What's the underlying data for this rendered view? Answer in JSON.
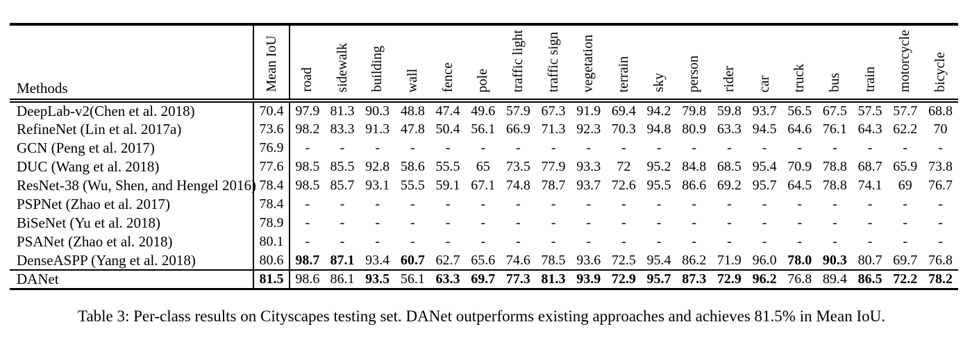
{
  "table": {
    "methods_header": "Methods",
    "mean_iou_header": "Mean IoU",
    "class_headers": [
      "road",
      "sidewalk",
      "building",
      "wall",
      "fence",
      "pole",
      "traffic light",
      "traffic sign",
      "vegetation",
      "terrain",
      "sky",
      "person",
      "rider",
      "car",
      "truck",
      "bus",
      "train",
      "motorcycle",
      "bicycle"
    ],
    "rows": [
      {
        "method": "DeepLab-v2(Chen et al. 2018)",
        "mean": "70.4",
        "mean_bold": false,
        "separator_above": false,
        "values": [
          "97.9",
          "81.3",
          "90.3",
          "48.8",
          "47.4",
          "49.6",
          "57.9",
          "67.3",
          "91.9",
          "69.4",
          "94.2",
          "79.8",
          "59.8",
          "93.7",
          "56.5",
          "67.5",
          "57.5",
          "57.7",
          "68.8"
        ],
        "bold_indices": []
      },
      {
        "method": "RefineNet (Lin et al. 2017a)",
        "mean": "73.6",
        "mean_bold": false,
        "separator_above": false,
        "values": [
          "98.2",
          "83.3",
          "91.3",
          "47.8",
          "50.4",
          "56.1",
          "66.9",
          "71.3",
          "92.3",
          "70.3",
          "94.8",
          "80.9",
          "63.3",
          "94.5",
          "64.6",
          "76.1",
          "64.3",
          "62.2",
          "70"
        ],
        "bold_indices": []
      },
      {
        "method": "GCN (Peng et al. 2017)",
        "mean": "76.9",
        "mean_bold": false,
        "separator_above": false,
        "values": [
          "-",
          "-",
          "-",
          "-",
          "-",
          "-",
          "-",
          "-",
          "-",
          "-",
          "-",
          "-",
          "-",
          "-",
          "-",
          "-",
          "-",
          "-",
          "-"
        ],
        "bold_indices": []
      },
      {
        "method": "DUC (Wang et al. 2018)",
        "mean": "77.6",
        "mean_bold": false,
        "separator_above": false,
        "values": [
          "98.5",
          "85.5",
          "92.8",
          "58.6",
          "55.5",
          "65",
          "73.5",
          "77.9",
          "93.3",
          "72",
          "95.2",
          "84.8",
          "68.5",
          "95.4",
          "70.9",
          "78.8",
          "68.7",
          "65.9",
          "73.8"
        ],
        "bold_indices": []
      },
      {
        "method": "ResNet-38 (Wu, Shen, and Hengel 2016)",
        "mean": "78.4",
        "mean_bold": false,
        "separator_above": false,
        "values": [
          "98.5",
          "85.7",
          "93.1",
          "55.5",
          "59.1",
          "67.1",
          "74.8",
          "78.7",
          "93.7",
          "72.6",
          "95.5",
          "86.6",
          "69.2",
          "95.7",
          "64.5",
          "78.8",
          "74.1",
          "69",
          "76.7"
        ],
        "bold_indices": []
      },
      {
        "method": "PSPNet (Zhao et al. 2017)",
        "mean": "78.4",
        "mean_bold": false,
        "separator_above": false,
        "values": [
          "-",
          "-",
          "-",
          "-",
          "-",
          "-",
          "-",
          "-",
          "-",
          "-",
          "-",
          "-",
          "-",
          "-",
          "-",
          "-",
          "-",
          "-",
          "-"
        ],
        "bold_indices": []
      },
      {
        "method": "BiSeNet (Yu et al. 2018)",
        "mean": "78.9",
        "mean_bold": false,
        "separator_above": false,
        "values": [
          "-",
          "-",
          "-",
          "-",
          "-",
          "-",
          "-",
          "-",
          "-",
          "-",
          "-",
          "-",
          "-",
          "-",
          "-",
          "-",
          "-",
          "-",
          "-"
        ],
        "bold_indices": []
      },
      {
        "method": "PSANet (Zhao et al. 2018)",
        "mean": "80.1",
        "mean_bold": false,
        "separator_above": false,
        "values": [
          "-",
          "-",
          "-",
          "-",
          "-",
          "-",
          "-",
          "-",
          "-",
          "-",
          "-",
          "-",
          "-",
          "-",
          "-",
          "-",
          "-",
          "-",
          "-"
        ],
        "bold_indices": []
      },
      {
        "method": "DenseASPP (Yang et al. 2018)",
        "mean": "80.6",
        "mean_bold": false,
        "separator_above": false,
        "values": [
          "98.7",
          "87.1",
          "93.4",
          "60.7",
          "62.7",
          "65.6",
          "74.6",
          "78.5",
          "93.6",
          "72.5",
          "95.4",
          "86.2",
          "71.9",
          "96.0",
          "78.0",
          "90.3",
          "80.7",
          "69.7",
          "76.8"
        ],
        "bold_indices": [
          0,
          1,
          3,
          14,
          15
        ]
      },
      {
        "method": "DANet",
        "mean": "81.5",
        "mean_bold": true,
        "separator_above": true,
        "values": [
          "98.6",
          "86.1",
          "93.5",
          "56.1",
          "63.3",
          "69.7",
          "77.3",
          "81.3",
          "93.9",
          "72.9",
          "95.7",
          "87.3",
          "72.9",
          "96.2",
          "76.8",
          "89.4",
          "86.5",
          "72.2",
          "78.2"
        ],
        "bold_indices": [
          2,
          4,
          5,
          6,
          7,
          8,
          9,
          10,
          11,
          12,
          13,
          16,
          17,
          18
        ]
      }
    ]
  },
  "caption": "Table 3: Per-class results on Cityscapes testing set. DANet outperforms existing approaches and achieves 81.5% in Mean IoU."
}
